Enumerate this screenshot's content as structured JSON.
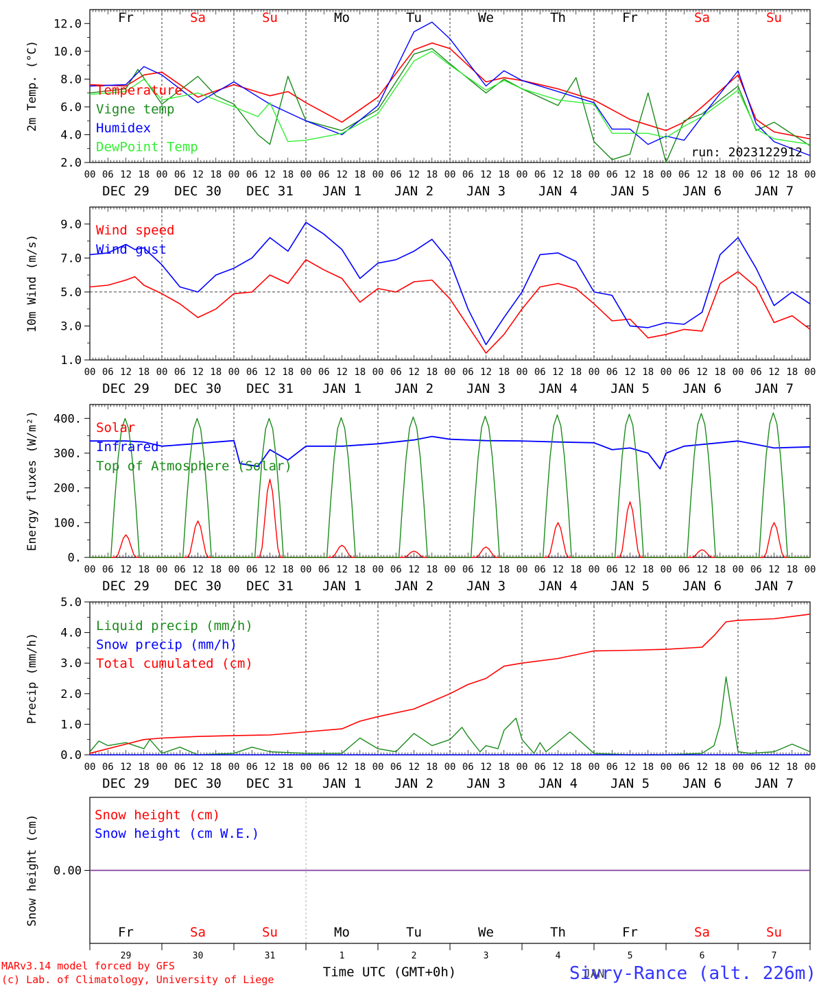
{
  "days": [
    "Fr",
    "Sa",
    "Su",
    "Mo",
    "Tu",
    "We",
    "Th",
    "Fr",
    "Sa",
    "Su"
  ],
  "weekend_flags": [
    false,
    true,
    true,
    false,
    false,
    false,
    false,
    false,
    true,
    true
  ],
  "hour_ticks": [
    "00",
    "06",
    "12",
    "18"
  ],
  "final_tick": "00",
  "date_labels": [
    "DEC 29",
    "DEC 30",
    "DEC 31",
    "JAN  1",
    "JAN  2",
    "JAN  3",
    "JAN  4",
    "JAN  5",
    "JAN  6",
    "JAN  7"
  ],
  "snow_day_numbers": [
    "29",
    "30",
    "31",
    "1",
    "2",
    "3",
    "4",
    "5",
    "6",
    "7"
  ],
  "month_label": "JAN",
  "footer": {
    "line1": "MARv3.14 model forced by GFS",
    "line2": "(c) Lab. of Climatology, University of Liege",
    "xlabel": "Time UTC (GMT+0h)",
    "station": "Sivry-Rance (alt. 226m)"
  },
  "colors": {
    "red": "#ff0000",
    "green": "#1a8a1a",
    "blue": "#0000ff",
    "lightgreen": "#33ee33",
    "purple": "#8040a0"
  },
  "chart_data": [
    {
      "type": "line",
      "ylabel": "2m Temp. (°C)",
      "ylim": [
        2.0,
        13.0
      ],
      "yticks": [
        "2.0",
        "4.0",
        "6.0",
        "8.0",
        "10.0",
        "12.0"
      ],
      "annotation": "run: 2023122912",
      "x_range_hours": [
        0,
        240
      ],
      "series": [
        {
          "name": "Temperature",
          "color": "#ff0000",
          "x": [
            0,
            12,
            18,
            24,
            36,
            48,
            60,
            66,
            72,
            84,
            96,
            108,
            114,
            120,
            132,
            138,
            144,
            156,
            168,
            180,
            192,
            198,
            204,
            216,
            222,
            228,
            240
          ],
          "y": [
            7.6,
            7.5,
            8.3,
            8.5,
            6.7,
            7.6,
            6.8,
            7.1,
            6.3,
            4.9,
            6.7,
            10.1,
            10.6,
            10.2,
            7.8,
            8.1,
            7.9,
            7.3,
            6.5,
            5.1,
            4.3,
            4.9,
            6.0,
            8.3,
            5.1,
            4.2,
            3.7
          ]
        },
        {
          "name": "Vigne temp",
          "color": "#1a8a1a",
          "x": [
            0,
            12,
            16,
            24,
            36,
            42,
            48,
            56,
            60,
            66,
            72,
            84,
            96,
            108,
            114,
            120,
            132,
            138,
            144,
            156,
            162,
            168,
            174,
            180,
            186,
            192,
            198,
            204,
            216,
            222,
            228,
            240
          ],
          "y": [
            7.0,
            7.3,
            8.7,
            6.2,
            8.2,
            6.8,
            6.2,
            4.0,
            3.3,
            8.2,
            5.0,
            4.3,
            5.8,
            9.8,
            10.2,
            9.1,
            7.0,
            8.0,
            7.3,
            6.1,
            8.1,
            3.5,
            2.2,
            2.6,
            7.0,
            2.0,
            5.0,
            5.5,
            7.5,
            4.3,
            4.9,
            3.2
          ]
        },
        {
          "name": "Humidex",
          "color": "#0000ff",
          "x": [
            0,
            12,
            18,
            24,
            36,
            48,
            60,
            72,
            84,
            96,
            108,
            114,
            120,
            132,
            138,
            144,
            156,
            168,
            174,
            180,
            186,
            192,
            198,
            204,
            216,
            222,
            228,
            240
          ],
          "y": [
            7.5,
            7.6,
            8.9,
            8.3,
            6.3,
            7.8,
            6.2,
            5.0,
            4.0,
            6.1,
            11.4,
            12.1,
            10.9,
            7.5,
            8.6,
            7.9,
            7.1,
            6.3,
            4.4,
            4.4,
            3.3,
            3.9,
            3.6,
            5.3,
            8.6,
            4.8,
            3.5,
            2.5
          ]
        },
        {
          "name": "DewPoint Temp",
          "color": "#33ee33",
          "x": [
            0,
            12,
            18,
            24,
            36,
            48,
            56,
            60,
            66,
            72,
            84,
            96,
            108,
            114,
            120,
            132,
            138,
            144,
            156,
            168,
            174,
            180,
            186,
            192,
            198,
            204,
            216,
            222,
            228,
            240
          ],
          "y": [
            6.9,
            7.1,
            8.0,
            6.5,
            7.0,
            6.0,
            5.3,
            6.3,
            3.5,
            3.6,
            4.1,
            5.5,
            9.3,
            10.0,
            9.0,
            7.2,
            7.9,
            7.3,
            6.5,
            6.2,
            4.1,
            4.1,
            4.1,
            3.8,
            4.6,
            5.3,
            7.2,
            4.4,
            3.7,
            3.3
          ]
        }
      ]
    },
    {
      "type": "line",
      "ylabel": "10m Wind (m/s)",
      "ylim": [
        1.0,
        10.0
      ],
      "yticks": [
        "1.0",
        "3.0",
        "5.0",
        "7.0",
        "9.0"
      ],
      "reference_line": 5.0,
      "x_range_hours": [
        0,
        240
      ],
      "series": [
        {
          "name": "Wind speed",
          "color": "#ff0000",
          "x": [
            0,
            6,
            12,
            15,
            18,
            24,
            30,
            36,
            42,
            48,
            54,
            60,
            66,
            72,
            78,
            84,
            90,
            96,
            102,
            108,
            114,
            120,
            126,
            132,
            138,
            144,
            150,
            156,
            162,
            168,
            174,
            180,
            186,
            192,
            198,
            204,
            210,
            216,
            222,
            228,
            234,
            240
          ],
          "y": [
            5.3,
            5.4,
            5.7,
            5.9,
            5.4,
            4.9,
            4.3,
            3.5,
            4.0,
            4.9,
            5.0,
            6.0,
            5.5,
            6.9,
            6.3,
            5.8,
            4.4,
            5.2,
            5.0,
            5.6,
            5.7,
            4.6,
            3.0,
            1.4,
            2.5,
            4.0,
            5.3,
            5.5,
            5.2,
            4.3,
            3.3,
            3.4,
            2.3,
            2.5,
            2.8,
            2.7,
            5.5,
            6.2,
            5.3,
            3.2,
            3.6,
            2.8
          ]
        },
        {
          "name": "Wind gust",
          "color": "#0000ff",
          "x": [
            0,
            6,
            12,
            15,
            18,
            24,
            30,
            36,
            42,
            48,
            54,
            60,
            66,
            72,
            78,
            84,
            90,
            96,
            102,
            108,
            114,
            120,
            126,
            132,
            138,
            144,
            150,
            156,
            162,
            168,
            174,
            180,
            186,
            192,
            198,
            204,
            210,
            216,
            222,
            228,
            234,
            240
          ],
          "y": [
            7.2,
            7.3,
            7.8,
            7.5,
            7.6,
            6.6,
            5.3,
            5.0,
            6.0,
            6.4,
            7.0,
            8.2,
            7.4,
            9.1,
            8.4,
            7.5,
            5.8,
            6.7,
            6.9,
            7.4,
            8.1,
            6.8,
            4.0,
            1.9,
            3.5,
            5.0,
            7.2,
            7.3,
            6.8,
            5.0,
            4.8,
            3.0,
            2.9,
            3.2,
            3.1,
            3.8,
            7.2,
            8.2,
            6.4,
            4.2,
            5.0,
            4.3
          ]
        }
      ]
    },
    {
      "type": "line",
      "ylabel": "Energy fluxes (W/m²)",
      "ylim": [
        0,
        440
      ],
      "yticks": [
        "0.",
        "100.",
        "200.",
        "300.",
        "400."
      ],
      "x_range_hours": [
        0,
        240
      ],
      "series": [
        {
          "name": "Solar",
          "color": "#ff0000",
          "daily_peaks": [
            65,
            105,
            225,
            35,
            18,
            30,
            100,
            160,
            22,
            100
          ]
        },
        {
          "name": "Infrared",
          "color": "#0000ff",
          "x": [
            0,
            12,
            18,
            24,
            36,
            48,
            50,
            56,
            60,
            66,
            72,
            84,
            96,
            108,
            114,
            120,
            132,
            144,
            156,
            168,
            174,
            180,
            186,
            190,
            192,
            198,
            204,
            216,
            222,
            228,
            240
          ],
          "y": [
            335,
            335,
            332,
            320,
            328,
            336,
            270,
            262,
            310,
            280,
            320,
            320,
            327,
            338,
            348,
            340,
            336,
            335,
            332,
            330,
            310,
            315,
            300,
            255,
            300,
            320,
            325,
            335,
            325,
            315,
            318
          ]
        },
        {
          "name": "Top of Atmosphere (Solar)",
          "color": "#1a8a1a",
          "daily_peaks": [
            400,
            400,
            400,
            402,
            404,
            406,
            410,
            412,
            414,
            416
          ]
        }
      ]
    },
    {
      "type": "line",
      "ylabel": "Precip (mm/h)",
      "ylim": [
        0,
        5.0
      ],
      "yticks": [
        "0.0",
        "1.0",
        "2.0",
        "3.0",
        "4.0",
        "5.0"
      ],
      "x_range_hours": [
        0,
        240
      ],
      "series": [
        {
          "name": "Liquid precip (mm/h)",
          "color": "#1a8a1a",
          "x": [
            0,
            3,
            6,
            12,
            18,
            20,
            24,
            30,
            36,
            48,
            54,
            60,
            72,
            84,
            90,
            96,
            102,
            108,
            114,
            120,
            124,
            126,
            130,
            132,
            136,
            138,
            142,
            144,
            148,
            150,
            152,
            160,
            168,
            180,
            192,
            204,
            208,
            210,
            212,
            216,
            220,
            228,
            234,
            240
          ],
          "y": [
            0.1,
            0.45,
            0.3,
            0.4,
            0.2,
            0.5,
            0.05,
            0.25,
            0.0,
            0.05,
            0.25,
            0.1,
            0.05,
            0.05,
            0.55,
            0.2,
            0.1,
            0.7,
            0.3,
            0.5,
            0.9,
            0.6,
            0.1,
            0.3,
            0.2,
            0.8,
            1.2,
            0.5,
            0.05,
            0.4,
            0.1,
            0.75,
            0.05,
            0.0,
            0.0,
            0.05,
            0.3,
            1.0,
            2.55,
            0.1,
            0.05,
            0.1,
            0.35,
            0.1
          ]
        },
        {
          "name": "Snow precip (mm/h)",
          "color": "#0000ff",
          "x": [
            0,
            240
          ],
          "y": [
            0.0,
            0.0
          ]
        },
        {
          "name": "Total cumulated (cm)",
          "color": "#ff0000",
          "x": [
            0,
            12,
            18,
            24,
            36,
            48,
            60,
            72,
            84,
            90,
            96,
            108,
            114,
            120,
            126,
            132,
            138,
            144,
            156,
            168,
            180,
            192,
            204,
            208,
            212,
            216,
            228,
            240
          ],
          "y": [
            0.05,
            0.35,
            0.5,
            0.55,
            0.6,
            0.63,
            0.65,
            0.75,
            0.85,
            1.1,
            1.25,
            1.5,
            1.75,
            2.0,
            2.3,
            2.5,
            2.9,
            3.0,
            3.15,
            3.4,
            3.42,
            3.45,
            3.52,
            3.9,
            4.35,
            4.4,
            4.45,
            4.6
          ]
        }
      ]
    },
    {
      "type": "line",
      "ylabel": "Snow height (cm)",
      "ylim": [
        -1,
        1
      ],
      "yticks": [
        "0.00"
      ],
      "x_range_hours": [
        0,
        240
      ],
      "series": [
        {
          "name": "Snow height (cm)",
          "color": "#ff0000",
          "x": [
            0,
            240
          ],
          "y": [
            0.0,
            0.0
          ]
        },
        {
          "name": "Snow height (cm W.E.)",
          "color": "#0000ff",
          "x": [
            0,
            240
          ],
          "y": [
            0.0,
            0.0
          ]
        }
      ]
    }
  ]
}
